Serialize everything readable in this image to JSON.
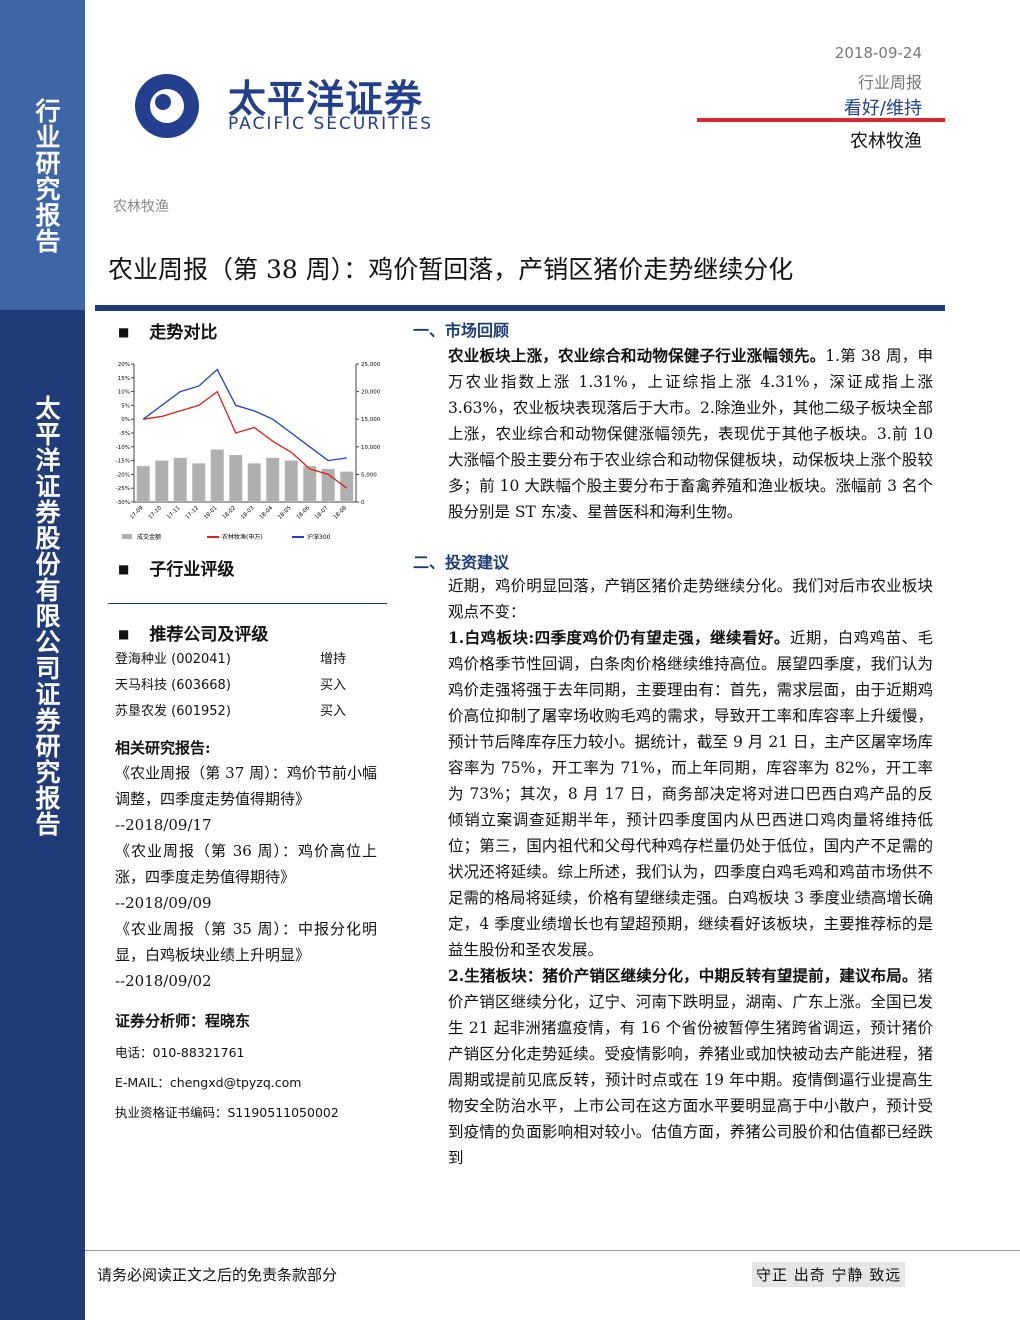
{
  "sidebar": {
    "top": "行业研究报告",
    "bottom": "太平洋证券股份有限公司证券研究报告"
  },
  "header": {
    "logo_cn": "太平洋证券",
    "logo_en": "PACIFIC SECURITIES",
    "date": "2018-09-24",
    "report_type": "行业周报",
    "rating": "看好/维持",
    "industry": "农林牧渔"
  },
  "breadcrumb": "农林牧渔",
  "title": "农业周报（第 38 周）：鸡价暂回落，产销区猪价走势继续分化",
  "chart_data": {
    "type": "combo",
    "title": "走势对比",
    "x": [
      "17-09",
      "17-10",
      "17-11",
      "17-12",
      "18-01",
      "18-02",
      "18-03",
      "18-04",
      "18-05",
      "18-06",
      "18-07",
      "18-08"
    ],
    "ylim": [
      -30,
      20
    ],
    "yticks": [
      {
        "value": 20,
        "label": "20%"
      },
      {
        "value": 15,
        "label": "15%"
      },
      {
        "value": 10,
        "label": "10%"
      },
      {
        "value": 5,
        "label": "5%"
      },
      {
        "value": 0,
        "label": "0%"
      },
      {
        "value": -5,
        "label": "-5%"
      },
      {
        "value": -10,
        "label": "-10%"
      },
      {
        "value": -15,
        "label": "-15%"
      },
      {
        "value": -20,
        "label": "-20%"
      },
      {
        "value": -25,
        "label": "-25%"
      },
      {
        "value": -30,
        "label": "-30%"
      }
    ],
    "y2lim": [
      0,
      25000
    ],
    "y2ticks": [
      {
        "value": 25000,
        "label": "25,000"
      },
      {
        "value": 20000,
        "label": "20,000"
      },
      {
        "value": 15000,
        "label": "15,000"
      },
      {
        "value": 10000,
        "label": "10,000"
      },
      {
        "value": 5000,
        "label": "5,000"
      },
      0
    ],
    "series": [
      {
        "name": "成交金额",
        "color": "#b0b0b0",
        "kind": "bar",
        "axis": "y2",
        "values": [
          6500,
          7500,
          8000,
          7000,
          9500,
          8500,
          7000,
          8000,
          7500,
          6500,
          6000,
          5500
        ]
      },
      {
        "name": "农林牧渔(申万)",
        "color": "#e0201b",
        "kind": "line",
        "values": [
          0,
          1,
          3,
          5,
          10,
          -5,
          -3,
          -8,
          -12,
          -18,
          -20,
          -25
        ]
      },
      {
        "name": "沪深300",
        "color": "#1f3fd0",
        "kind": "line",
        "values": [
          0,
          5,
          10,
          12,
          18,
          5,
          3,
          0,
          -5,
          -10,
          -15,
          -14
        ]
      }
    ]
  },
  "left": {
    "rating_title": "子行业评级",
    "recommend_title": "推荐公司及评级",
    "companies": [
      [
        "登海种业 (002041)",
        "增持"
      ],
      [
        "天马科技 (603668)",
        "买入"
      ],
      [
        "苏垦农发 (601952)",
        "买入"
      ]
    ],
    "reports_title": "相关研究报告:",
    "reports": [
      {
        "title": "《农业周报（第 37 周）：鸡价节前小幅调整，四季度走势值得期待》",
        "date": "--2018/09/17"
      },
      {
        "title": "《农业周报（第 36 周）：鸡价高位上涨，四季度走势值得期待》",
        "date": "--2018/09/09"
      },
      {
        "title": "《农业周报（第 35 周）：中报分化明显，白鸡板块业绩上升明显》",
        "date": "--2018/09/02"
      }
    ],
    "analyst": "证券分析师：程晓东",
    "phone": "电话：010-88321761",
    "email": "E-MAIL：chengxd@tpyzq.com",
    "license": "执业资格证书编码：S1190511050002"
  },
  "right": {
    "section1": {
      "heading": "一、市场回顾",
      "lead": "农业板块上涨，农业综合和动物保健子行业涨幅领先。",
      "text": "1.第 38 周，申万农业指数上涨 1.31%，上证综指上涨 4.31%，深证成指上涨 3.63%，农业板块表现落后于大市。2.除渔业外，其他二级子板块全部上涨，农业综合和动物保健涨幅领先，表现优于其他子板块。3.前 10 大涨幅个股主要分布于农业综合和动物保健板块，动保板块上涨个股较多；前 10 大跌幅个股主要分布于畜禽养殖和渔业板块。涨幅前 3 名个股分别是 ST 东凌、星普医科和海利生物。"
    },
    "section2": {
      "heading": "二、投资建议",
      "intro": "近期，鸡价明显回落，产销区猪价走势继续分化。我们对后市农业板块观点不变：",
      "item1": {
        "lead": "1.白鸡板块:四季度鸡价仍有望走强，继续看好。",
        "text": "近期，白鸡鸡苗、毛鸡价格季节性回调，白条肉价格继续维持高位。展望四季度，我们认为鸡价走强将强于去年同期，主要理由有：首先，需求层面，由于近期鸡价高位抑制了屠宰场收购毛鸡的需求，导致开工率和库容率上升缓慢，预计节后降库存压力较小。据统计，截至 9 月 21 日，主产区屠宰场库容率为 75%，开工率为 71%，而上年同期，库容率为 82%，开工率为 73%；其次，8 月 17 日，商务部决定将对进口巴西白鸡产品的反倾销立案调查延期半年，预计四季度国内从巴西进口鸡肉量将维持低位；第三，国内祖代和父母代种鸡存栏量仍处于低位，国内产不足需的状况还将延续。综上所述，我们认为，四季度白鸡毛鸡和鸡苗市场供不足需的格局将延续，价格有望继续走强。白鸡板块 3 季度业绩高增长确定，4 季度业绩增长也有望超预期，继续看好该板块，主要推荐标的是益生股份和圣农发展。"
      },
      "item2": {
        "lead": "2.生猪板块：猪价产销区继续分化，中期反转有望提前，建议布局。",
        "text": "猪价产销区继续分化，辽宁、河南下跌明显，湖南、广东上涨。全国已发生 21 起非洲猪瘟疫情，有 16 个省份被暂停生猪跨省调运，预计猪价产销区分化走势延续。受疫情影响，养猪业或加快被动去产能进程，猪周期或提前见底反转，预计时点或在 19 年中期。疫情倒逼行业提高生物安全防治水平，上市公司在这方面水平要明显高于中小散户，预计受到疫情的负面影响相对较小。估值方面，养猪公司股价和估值都已经跌到"
      }
    }
  },
  "footer": {
    "disclaimer": "请务必阅读正文之后的免责条款部分",
    "motto": "守正 出奇 宁静 致远"
  }
}
